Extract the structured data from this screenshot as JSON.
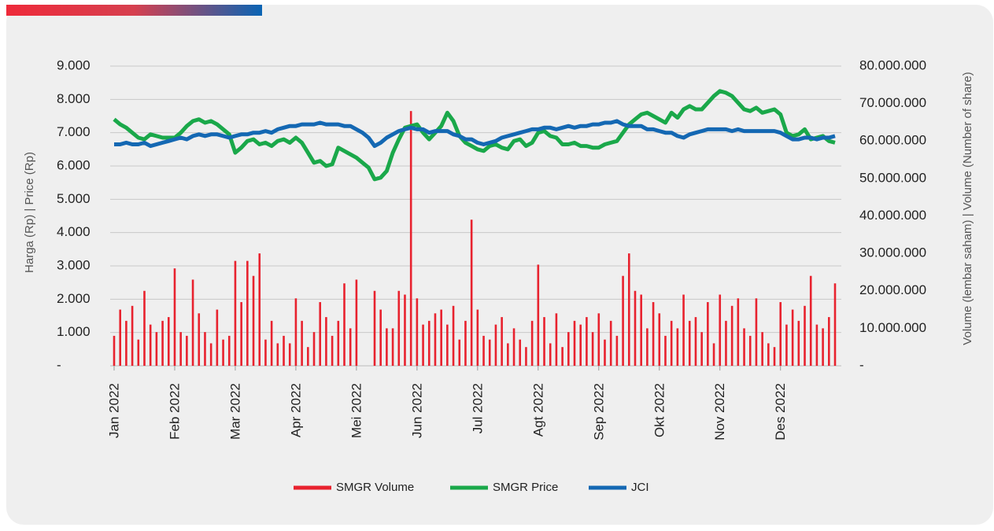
{
  "chart_data": {
    "type": "line",
    "y_label": "Harga (Rp) | Price (Rp)",
    "y2_label": "Volume (lembar saham) | Volume (Number of share)",
    "categories": [
      "Jan 2022",
      null,
      null,
      null,
      null,
      null,
      null,
      null,
      null,
      null,
      "Feb 2022",
      null,
      null,
      null,
      null,
      null,
      null,
      null,
      null,
      null,
      "Mar 2022",
      null,
      null,
      null,
      null,
      null,
      null,
      null,
      null,
      null,
      "Apr 2022",
      null,
      null,
      null,
      null,
      null,
      null,
      null,
      null,
      null,
      "Mei 2022",
      null,
      null,
      null,
      null,
      null,
      null,
      null,
      null,
      null,
      "Jun 2022",
      null,
      null,
      null,
      null,
      null,
      null,
      null,
      null,
      null,
      "Jul 2022",
      null,
      null,
      null,
      null,
      null,
      null,
      null,
      null,
      null,
      "Agt 2022",
      null,
      null,
      null,
      null,
      null,
      null,
      null,
      null,
      null,
      "Sep 2022",
      null,
      null,
      null,
      null,
      null,
      null,
      null,
      null,
      null,
      "Okt 2022",
      null,
      null,
      null,
      null,
      null,
      null,
      null,
      null,
      null,
      "Nov 2022",
      null,
      null,
      null,
      null,
      null,
      null,
      null,
      null,
      null,
      "Des 2022",
      null,
      null,
      null,
      null,
      null,
      null,
      null,
      null,
      null
    ],
    "ylim": [
      0,
      9000
    ],
    "yticks": [
      {
        "value": 0,
        "label": "-"
      },
      {
        "value": 1000,
        "label": "1.000"
      },
      {
        "value": 2000,
        "label": "2.000"
      },
      {
        "value": 3000,
        "label": "3.000"
      },
      {
        "value": 4000,
        "label": "4.000"
      },
      {
        "value": 5000,
        "label": "5.000"
      },
      {
        "value": 6000,
        "label": "6.000"
      },
      {
        "value": 7000,
        "label": "7.000"
      },
      {
        "value": 8000,
        "label": "8.000"
      },
      {
        "value": 9000,
        "label": "9.000"
      }
    ],
    "y2lim": [
      0,
      80000000
    ],
    "y2ticks": [
      {
        "value": 0,
        "label": "-"
      },
      {
        "value": 10000000,
        "label": "10.000.000"
      },
      {
        "value": 20000000,
        "label": "20.000.000"
      },
      {
        "value": 30000000,
        "label": "30.000.000"
      },
      {
        "value": 40000000,
        "label": "40.000.000"
      },
      {
        "value": 50000000,
        "label": "50.000.000"
      },
      {
        "value": 60000000,
        "label": "60.000.000"
      },
      {
        "value": 70000000,
        "label": "70.000.000"
      },
      {
        "value": 80000000,
        "label": "80.000.000"
      }
    ],
    "grid": true,
    "legend": "bottom",
    "series": [
      {
        "name": "SMGR Volume",
        "type": "bar",
        "axis": "y2",
        "color": "#e8222e",
        "values": [
          8000000,
          15000000,
          12000000,
          16000000,
          7000000,
          20000000,
          11000000,
          9000000,
          12000000,
          13000000,
          26000000,
          9000000,
          8000000,
          23000000,
          14000000,
          9000000,
          6000000,
          15000000,
          7000000,
          8000000,
          28000000,
          17000000,
          28000000,
          24000000,
          30000000,
          7000000,
          12000000,
          6000000,
          8000000,
          6000000,
          18000000,
          12000000,
          5000000,
          9000000,
          17000000,
          13000000,
          8000000,
          12000000,
          22000000,
          10000000,
          23000000,
          null,
          null,
          20000000,
          15000000,
          10000000,
          10000000,
          20000000,
          19000000,
          68000000,
          18000000,
          11000000,
          12000000,
          14000000,
          15000000,
          11000000,
          16000000,
          7000000,
          12000000,
          39000000,
          15000000,
          8000000,
          7000000,
          11000000,
          13000000,
          6000000,
          10000000,
          7000000,
          5000000,
          12000000,
          27000000,
          13000000,
          6000000,
          14000000,
          5000000,
          9000000,
          12000000,
          11000000,
          13000000,
          9000000,
          14000000,
          7000000,
          12000000,
          8000000,
          24000000,
          30000000,
          20000000,
          19000000,
          10000000,
          17000000,
          14000000,
          8000000,
          12000000,
          10000000,
          19000000,
          12000000,
          13000000,
          9000000,
          17000000,
          6000000,
          19000000,
          12000000,
          16000000,
          18000000,
          10000000,
          8000000,
          18000000,
          9000000,
          6000000,
          5000000,
          17000000,
          11000000,
          15000000,
          12000000,
          16000000,
          24000000,
          11000000,
          10000000,
          13000000,
          22000000
        ]
      },
      {
        "name": "SMGR Price",
        "type": "line",
        "color": "#1aa84a",
        "values": [
          7400,
          7250,
          7150,
          7000,
          6850,
          6800,
          6950,
          6900,
          6850,
          6850,
          6850,
          7000,
          7200,
          7350,
          7400,
          7300,
          7350,
          7250,
          7100,
          6950,
          6400,
          6550,
          6750,
          6800,
          6650,
          6700,
          6600,
          6750,
          6800,
          6700,
          6850,
          6700,
          6400,
          6100,
          6150,
          6000,
          6050,
          6550,
          6450,
          6350,
          6250,
          6100,
          5950,
          5600,
          5650,
          5850,
          6400,
          6800,
          7150,
          7200,
          7250,
          7000,
          6800,
          7000,
          7200,
          7600,
          7350,
          6900,
          6700,
          6600,
          6500,
          6450,
          6600,
          6650,
          6550,
          6500,
          6750,
          6800,
          6600,
          6700,
          7000,
          7050,
          6900,
          6850,
          6650,
          6650,
          6700,
          6600,
          6600,
          6550,
          6550,
          6650,
          6700,
          6750,
          7000,
          7250,
          7400,
          7550,
          7600,
          7500,
          7400,
          7300,
          7600,
          7450,
          7700,
          7800,
          7700,
          7700,
          7900,
          8100,
          8250,
          8200,
          8100,
          7900,
          7700,
          7650,
          7750,
          7600,
          7650,
          7700,
          7550,
          7000,
          6900,
          6950,
          7100,
          6800,
          6850,
          6900,
          6750,
          6700
        ]
      },
      {
        "name": "JCI",
        "type": "line",
        "color": "#1468b3",
        "values": [
          6650,
          6650,
          6700,
          6650,
          6650,
          6700,
          6600,
          6650,
          6700,
          6750,
          6800,
          6850,
          6800,
          6900,
          6950,
          6900,
          6950,
          6950,
          6900,
          6850,
          6900,
          6950,
          6950,
          7000,
          7000,
          7050,
          7000,
          7100,
          7150,
          7200,
          7200,
          7250,
          7250,
          7250,
          7300,
          7250,
          7250,
          7250,
          7200,
          7200,
          7100,
          7000,
          6850,
          6600,
          6700,
          6850,
          6950,
          7050,
          7100,
          7150,
          7100,
          7100,
          7000,
          7050,
          7050,
          7050,
          6950,
          6900,
          6800,
          6800,
          6700,
          6650,
          6700,
          6750,
          6850,
          6900,
          6950,
          7000,
          7050,
          7100,
          7100,
          7150,
          7150,
          7100,
          7150,
          7200,
          7150,
          7200,
          7200,
          7250,
          7250,
          7300,
          7300,
          7350,
          7250,
          7200,
          7200,
          7200,
          7100,
          7100,
          7050,
          7000,
          7000,
          6900,
          6850,
          6950,
          7000,
          7050,
          7100,
          7100,
          7100,
          7100,
          7050,
          7100,
          7050,
          7050,
          7050,
          7050,
          7050,
          7050,
          7000,
          6900,
          6800,
          6800,
          6850,
          6850,
          6800,
          6850,
          6850,
          6900
        ]
      }
    ]
  }
}
